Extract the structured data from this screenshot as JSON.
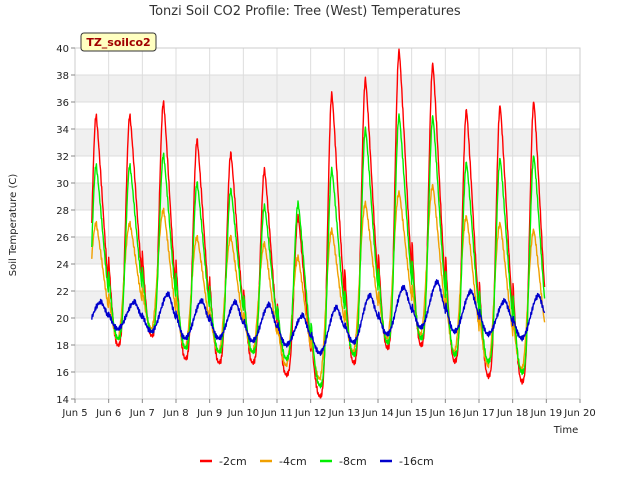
{
  "chart_data": {
    "type": "line",
    "title": "Tonzi Soil CO2 Profile: Tree (West) Temperatures",
    "xlabel": "Time",
    "ylabel": "Soil Temperature (C)",
    "badge": "TZ_soilco2",
    "x_domain_days": [
      5,
      20
    ],
    "ylim": [
      14,
      40
    ],
    "y_ticks": [
      14,
      16,
      18,
      20,
      22,
      24,
      26,
      28,
      30,
      32,
      34,
      36,
      38,
      40
    ],
    "x_ticks": [
      {
        "day": 5,
        "label": "Jun 5"
      },
      {
        "day": 6,
        "label": "Jun 6"
      },
      {
        "day": 7,
        "label": "Jun 7"
      },
      {
        "day": 8,
        "label": "Jun 8"
      },
      {
        "day": 9,
        "label": "Jun 9"
      },
      {
        "day": 10,
        "label": "Jun 10"
      },
      {
        "day": 11,
        "label": "Jun 11"
      },
      {
        "day": 12,
        "label": "Jun 12"
      },
      {
        "day": 13,
        "label": "Jun 13"
      },
      {
        "day": 14,
        "label": "Jun 14"
      },
      {
        "day": 15,
        "label": "Jun 15"
      },
      {
        "day": 16,
        "label": "Jun 16"
      },
      {
        "day": 17,
        "label": "Jun 17"
      },
      {
        "day": 18,
        "label": "Jun 18"
      },
      {
        "day": 19,
        "label": "Jun 19"
      },
      {
        "day": 20,
        "label": "Jun 20"
      }
    ],
    "grid": true,
    "band_colors": [
      "#ffffff",
      "#f0f0f0"
    ],
    "legend_position": "bottom-center",
    "day_start": 5.5,
    "day_end": 18.95,
    "series": [
      {
        "name": "-2cm",
        "color": "#ff0000",
        "daily_max": [
          35.0,
          36.0,
          33.2,
          32.2,
          31.0,
          27.5,
          36.6,
          37.7,
          39.8,
          38.8,
          35.4,
          35.7,
          36.0,
          33.8
        ],
        "daily_min": [
          18.0,
          18.7,
          17.0,
          16.7,
          16.7,
          15.8,
          14.2,
          16.7,
          17.8,
          18.0,
          16.8,
          15.7,
          15.3,
          15.0
        ],
        "start_value": 19.0,
        "end_value": 16.7
      },
      {
        "name": "-4cm",
        "color": "#f0a000",
        "daily_max": [
          27.0,
          28.0,
          26.0,
          26.0,
          25.5,
          24.5,
          26.5,
          28.5,
          29.3,
          29.8,
          27.5,
          27.0,
          26.5,
          26.5
        ],
        "daily_min": [
          18.5,
          19.2,
          17.8,
          17.5,
          17.5,
          16.5,
          15.5,
          17.5,
          18.5,
          18.8,
          17.5,
          16.5,
          16.2,
          16.0
        ],
        "start_value": 19.5,
        "end_value": 18.0
      },
      {
        "name": "-8cm",
        "color": "#00ee00",
        "daily_max": [
          31.3,
          32.1,
          30.0,
          29.5,
          28.3,
          28.5,
          31.0,
          34.0,
          35.0,
          34.9,
          31.5,
          31.8,
          32.0,
          30.8
        ],
        "daily_min": [
          18.5,
          19.0,
          17.8,
          17.5,
          17.5,
          17.0,
          15.0,
          17.3,
          18.2,
          18.5,
          17.3,
          16.8,
          16.0,
          15.8
        ],
        "start_value": 20.0,
        "end_value": 17.5
      },
      {
        "name": "-16cm",
        "color": "#0000cc",
        "daily_max": [
          21.2,
          21.8,
          21.3,
          21.2,
          21.0,
          20.2,
          20.8,
          21.7,
          22.3,
          22.7,
          22.0,
          21.3,
          21.7,
          21.4
        ],
        "daily_min": [
          19.2,
          19.0,
          18.5,
          18.5,
          18.3,
          18.0,
          17.4,
          18.2,
          18.8,
          19.3,
          19.0,
          18.8,
          18.5,
          18.6
        ],
        "start_value": 19.8,
        "end_value": 19.4
      }
    ]
  }
}
